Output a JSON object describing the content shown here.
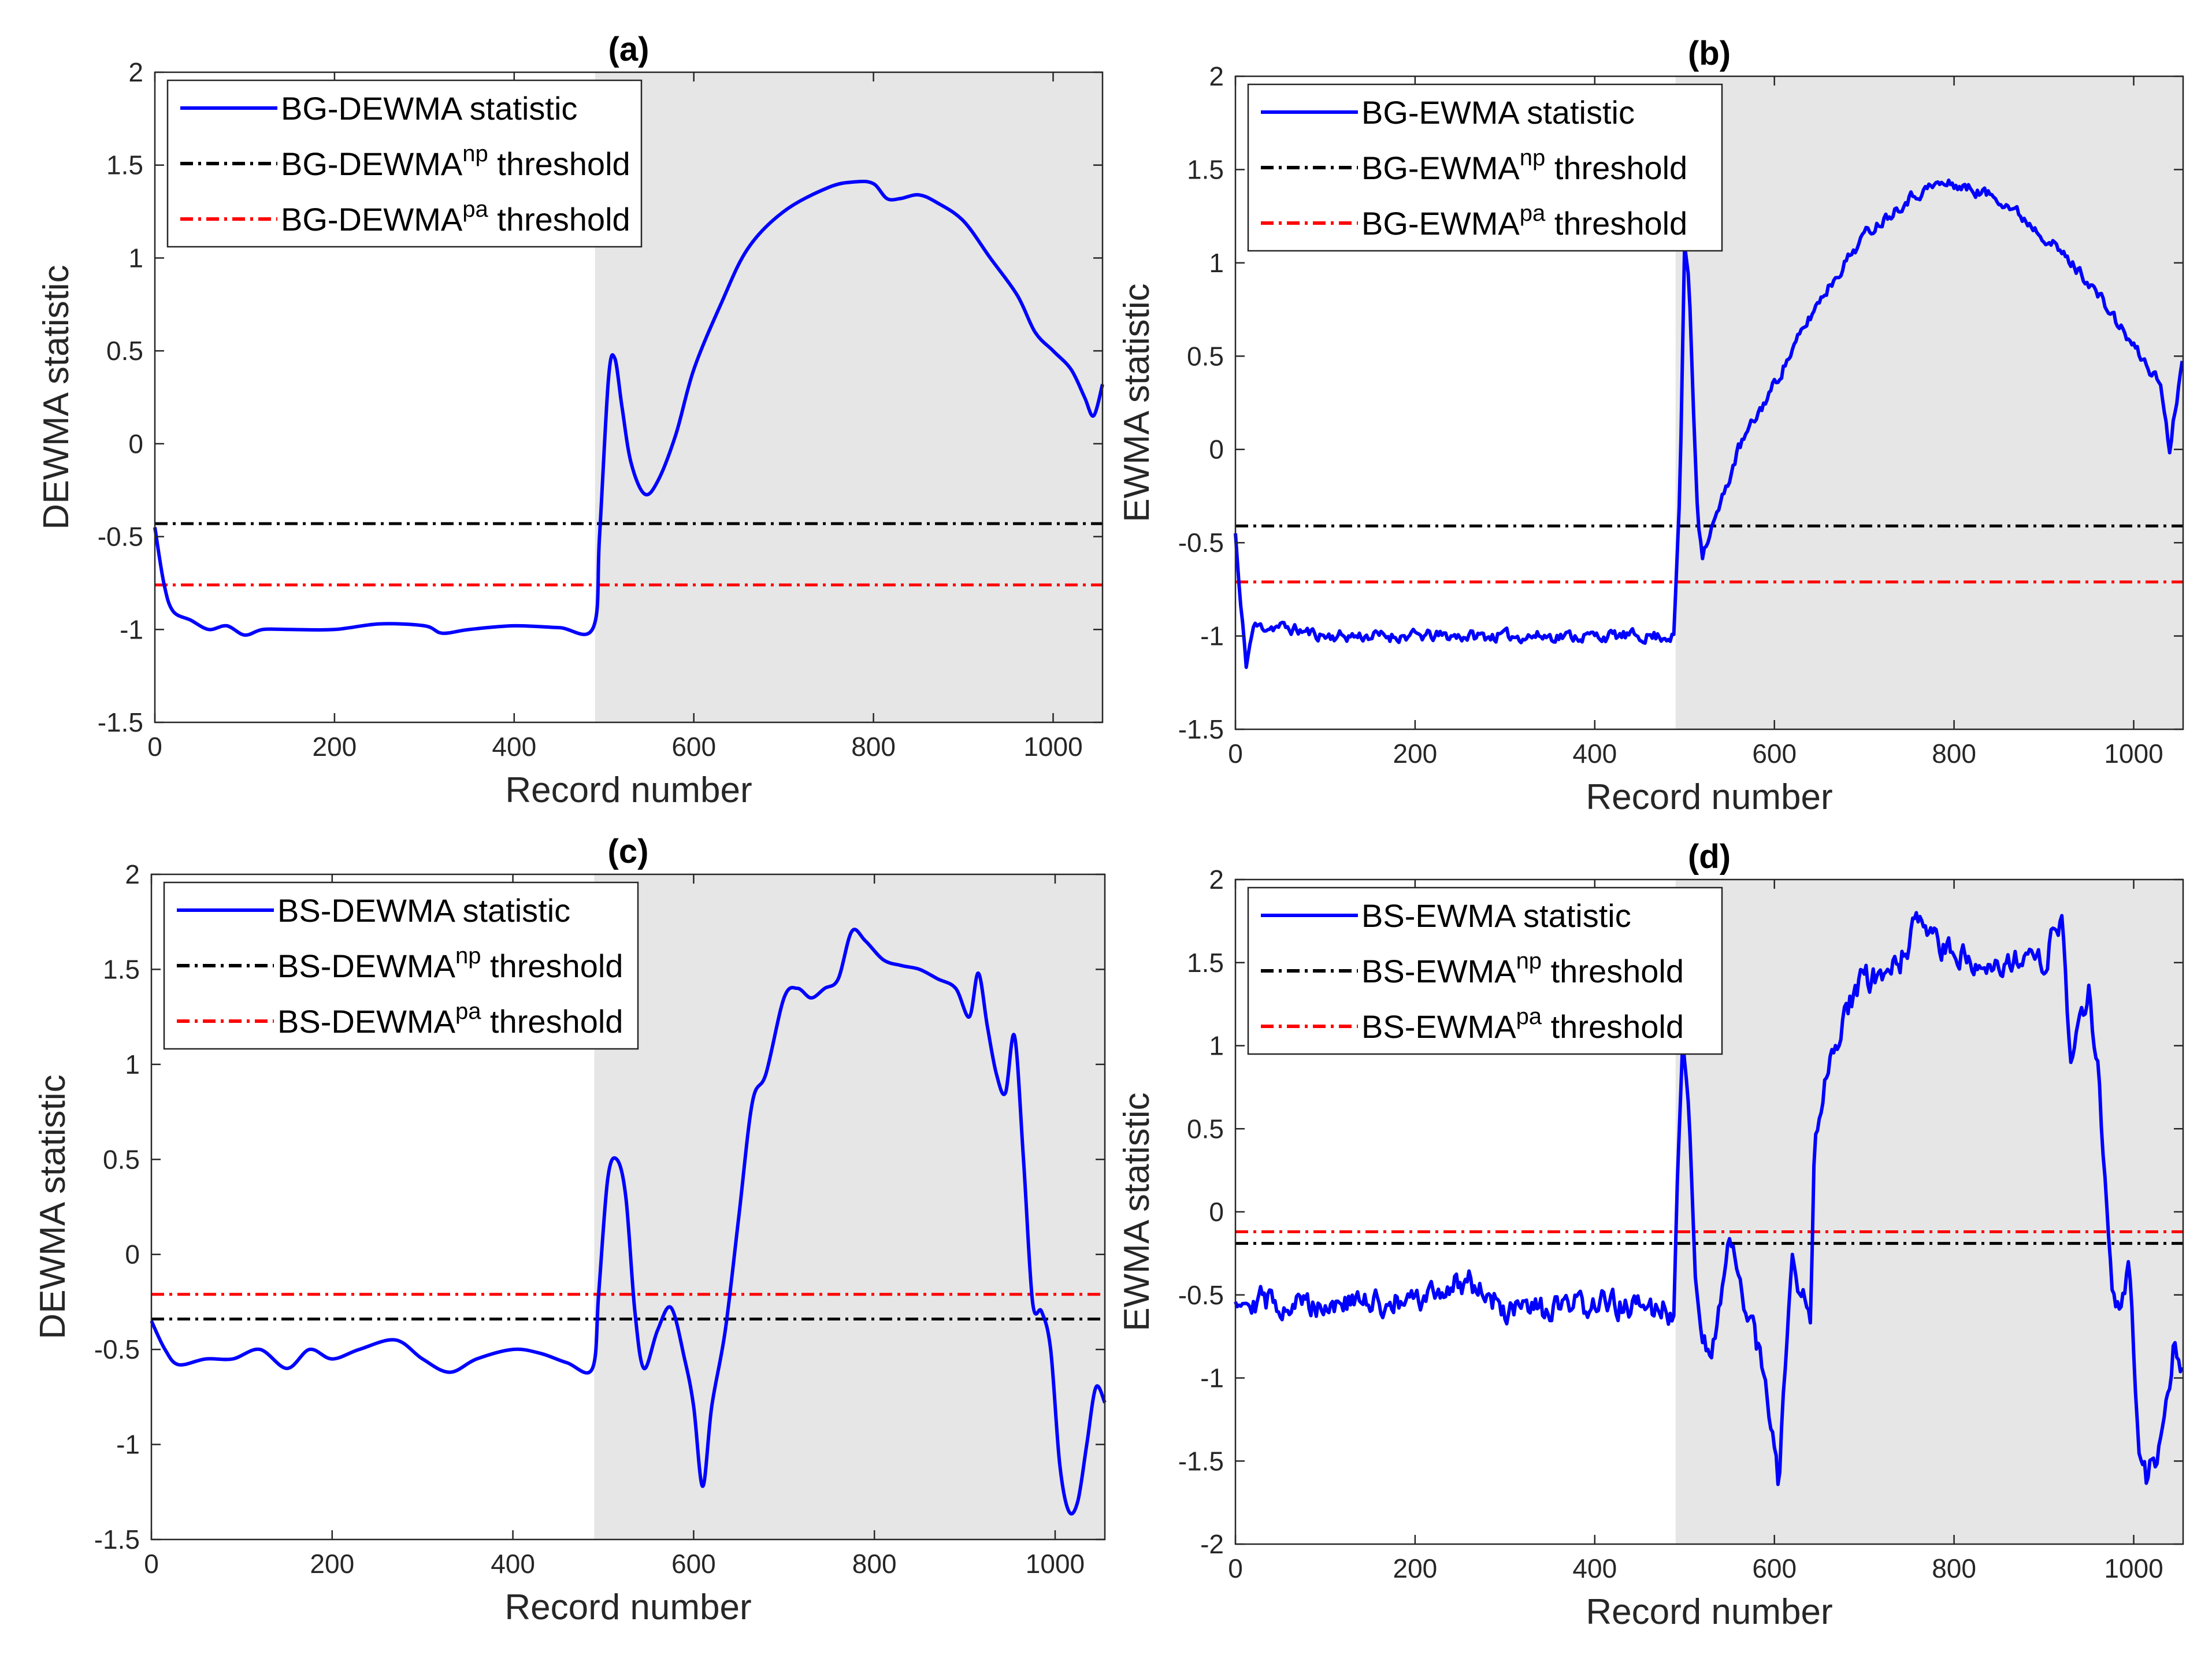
{
  "figure": {
    "shade_color": "#e6e6e6",
    "statistic_color": "#0000ff",
    "np_color": "#000000",
    "pa_color": "#ff0000"
  },
  "chart_data": [
    {
      "type": "line",
      "panel_label": "(a)",
      "xlabel": "Record number",
      "ylabel": "DEWMA statistic",
      "xlim": [
        0,
        1055
      ],
      "ylim": [
        -1.5,
        2
      ],
      "xticks": [
        0,
        200,
        400,
        600,
        800,
        1000
      ],
      "yticks": [
        -1.5,
        -1,
        -0.5,
        0,
        0.5,
        1,
        1.5,
        2
      ],
      "shaded_region": [
        490,
        1055
      ],
      "legend_location": "top-left",
      "legend": [
        {
          "prefix": "BG-DEWMA statistic",
          "sup": "",
          "suffix": ""
        },
        {
          "prefix": "BG-DEWMA",
          "sup": "np",
          "suffix": " threshold"
        },
        {
          "prefix": "BG-DEWMA",
          "sup": "pa",
          "suffix": " threshold"
        }
      ],
      "thresholds": {
        "np": -0.43,
        "pa": -0.76
      },
      "series": [
        {
          "name": "BG-DEWMA statistic",
          "style": "smooth",
          "x": [
            0,
            10,
            20,
            40,
            60,
            80,
            100,
            120,
            150,
            200,
            250,
            300,
            320,
            350,
            400,
            450,
            488,
            495,
            505,
            512,
            520,
            530,
            545,
            560,
            580,
            600,
            630,
            660,
            700,
            750,
            780,
            800,
            815,
            830,
            850,
            870,
            900,
            930,
            960,
            980,
            1000,
            1020,
            1035,
            1045,
            1055
          ],
          "y": [
            -0.45,
            -0.75,
            -0.9,
            -0.95,
            -1.0,
            -0.98,
            -1.03,
            -1.0,
            -1.0,
            -1.0,
            -0.97,
            -0.98,
            -1.02,
            -1.0,
            -0.98,
            -0.99,
            -0.99,
            -0.5,
            0.35,
            0.46,
            0.2,
            -0.1,
            -0.27,
            -0.2,
            0.05,
            0.4,
            0.75,
            1.05,
            1.25,
            1.38,
            1.41,
            1.4,
            1.32,
            1.32,
            1.34,
            1.3,
            1.2,
            1.0,
            0.8,
            0.6,
            0.5,
            0.4,
            0.25,
            0.15,
            0.32
          ]
        }
      ]
    },
    {
      "type": "line",
      "panel_label": "(b)",
      "xlabel": "Record number",
      "ylabel": "EWMA statistic",
      "xlim": [
        0,
        1055
      ],
      "ylim": [
        -1.5,
        2
      ],
      "xticks": [
        0,
        200,
        400,
        600,
        800,
        1000
      ],
      "yticks": [
        -1.5,
        -1,
        -0.5,
        0,
        0.5,
        1,
        1.5,
        2
      ],
      "shaded_region": [
        490,
        1055
      ],
      "legend_location": "top-left",
      "legend": [
        {
          "prefix": "BG-EWMA statistic",
          "sup": "",
          "suffix": ""
        },
        {
          "prefix": "BG-EWMA",
          "sup": "np",
          "suffix": " threshold"
        },
        {
          "prefix": "BG-EWMA",
          "sup": "pa",
          "suffix": " threshold"
        }
      ],
      "thresholds": {
        "np": -0.41,
        "pa": -0.71
      },
      "series": [
        {
          "name": "BG-EWMA statistic",
          "style": "noisy",
          "noise": 0.05,
          "seed": 11,
          "x": [
            0,
            5,
            12,
            20,
            50,
            100,
            200,
            300,
            400,
            488,
            495,
            500,
            505,
            510,
            515,
            520,
            540,
            560,
            600,
            650,
            700,
            750,
            780,
            800,
            850,
            900,
            950,
            1000,
            1030,
            1040,
            1050,
            1055
          ],
          "y": [
            -0.45,
            -0.8,
            -1.15,
            -0.95,
            -0.95,
            -1.0,
            -1.0,
            -1.0,
            -1.0,
            -1.0,
            -0.2,
            1.1,
            0.9,
            0.2,
            -0.4,
            -0.55,
            -0.3,
            0.0,
            0.35,
            0.8,
            1.15,
            1.35,
            1.42,
            1.42,
            1.35,
            1.15,
            0.9,
            0.55,
            0.35,
            0.0,
            0.35,
            0.55
          ]
        }
      ]
    },
    {
      "type": "line",
      "panel_label": "(c)",
      "xlabel": "Record number",
      "ylabel": "DEWMA statistic",
      "xlim": [
        0,
        1055
      ],
      "ylim": [
        -1.5,
        2
      ],
      "xticks": [
        0,
        200,
        400,
        600,
        800,
        1000
      ],
      "yticks": [
        -1.5,
        -1,
        -0.5,
        0,
        0.5,
        1,
        1.5,
        2
      ],
      "shaded_region": [
        490,
        1055
      ],
      "legend_location": "top-left",
      "legend": [
        {
          "prefix": "BS-DEWMA statistic",
          "sup": "",
          "suffix": ""
        },
        {
          "prefix": "BS-DEWMA",
          "sup": "np",
          "suffix": " threshold"
        },
        {
          "prefix": "BS-DEWMA",
          "sup": "pa",
          "suffix": " threshold"
        }
      ],
      "thresholds": {
        "np": -0.34,
        "pa": -0.21
      },
      "series": [
        {
          "name": "BS-DEWMA statistic",
          "style": "smooth",
          "x": [
            0,
            15,
            30,
            60,
            90,
            120,
            150,
            175,
            200,
            230,
            270,
            300,
            330,
            360,
            400,
            430,
            460,
            488,
            495,
            505,
            515,
            525,
            535,
            545,
            560,
            575,
            590,
            600,
            610,
            620,
            635,
            650,
            665,
            680,
            700,
            715,
            730,
            745,
            760,
            775,
            790,
            810,
            830,
            850,
            870,
            890,
            905,
            915,
            925,
            935,
            945,
            955,
            965,
            975,
            985,
            995,
            1005,
            1015,
            1025,
            1035,
            1045,
            1055
          ],
          "y": [
            -0.35,
            -0.5,
            -0.58,
            -0.55,
            -0.55,
            -0.5,
            -0.6,
            -0.5,
            -0.55,
            -0.5,
            -0.45,
            -0.55,
            -0.62,
            -0.55,
            -0.5,
            -0.52,
            -0.57,
            -0.6,
            -0.2,
            0.4,
            0.5,
            0.3,
            -0.3,
            -0.6,
            -0.4,
            -0.28,
            -0.55,
            -0.8,
            -1.22,
            -0.8,
            -0.4,
            0.2,
            0.8,
            0.95,
            1.35,
            1.4,
            1.35,
            1.4,
            1.45,
            1.7,
            1.65,
            1.55,
            1.52,
            1.5,
            1.45,
            1.4,
            1.25,
            1.48,
            1.2,
            0.95,
            0.85,
            1.15,
            0.5,
            -0.25,
            -0.3,
            -0.5,
            -1.1,
            -1.35,
            -1.3,
            -1.0,
            -0.7,
            -0.78
          ]
        }
      ]
    },
    {
      "type": "line",
      "panel_label": "(d)",
      "xlabel": "Record number",
      "ylabel": "EWMA statistic",
      "xlim": [
        0,
        1055
      ],
      "ylim": [
        -2,
        2
      ],
      "xticks": [
        0,
        200,
        400,
        600,
        800,
        1000
      ],
      "yticks": [
        -2,
        -1.5,
        -1,
        -0.5,
        0,
        0.5,
        1,
        1.5,
        2
      ],
      "shaded_region": [
        490,
        1055
      ],
      "legend_location": "top-left",
      "legend": [
        {
          "prefix": "BS-EWMA statistic",
          "sup": "",
          "suffix": ""
        },
        {
          "prefix": "BS-EWMA",
          "sup": "np",
          "suffix": " threshold"
        },
        {
          "prefix": "BS-EWMA",
          "sup": "pa",
          "suffix": " threshold"
        }
      ],
      "thresholds": {
        "np": -0.19,
        "pa": -0.12
      },
      "series": [
        {
          "name": "BS-EWMA statistic",
          "style": "noisy",
          "noise": 0.13,
          "seed": 29,
          "x": [
            0,
            50,
            100,
            150,
            200,
            260,
            300,
            350,
            400,
            488,
            492,
            498,
            505,
            512,
            520,
            535,
            550,
            560,
            575,
            590,
            600,
            605,
            612,
            620,
            630,
            640,
            645,
            660,
            680,
            700,
            720,
            740,
            760,
            780,
            800,
            850,
            900,
            920,
            930,
            950,
            960,
            975,
            985,
            995,
            1005,
            1015,
            1030,
            1045,
            1055
          ],
          "y": [
            -0.5,
            -0.55,
            -0.55,
            -0.55,
            -0.55,
            -0.4,
            -0.6,
            -0.6,
            -0.55,
            -0.6,
            0.2,
            1.05,
            0.6,
            -0.4,
            -0.8,
            -0.75,
            -0.2,
            -0.4,
            -0.7,
            -1.0,
            -1.4,
            -1.7,
            -0.9,
            -0.3,
            -0.5,
            -0.6,
            0.5,
            0.9,
            1.2,
            1.4,
            1.4,
            1.5,
            1.75,
            1.6,
            1.55,
            1.5,
            1.5,
            1.8,
            0.9,
            1.3,
            0.9,
            -0.4,
            -0.6,
            -0.3,
            -1.4,
            -1.6,
            -1.4,
            -0.8,
            -0.95
          ]
        }
      ]
    }
  ]
}
